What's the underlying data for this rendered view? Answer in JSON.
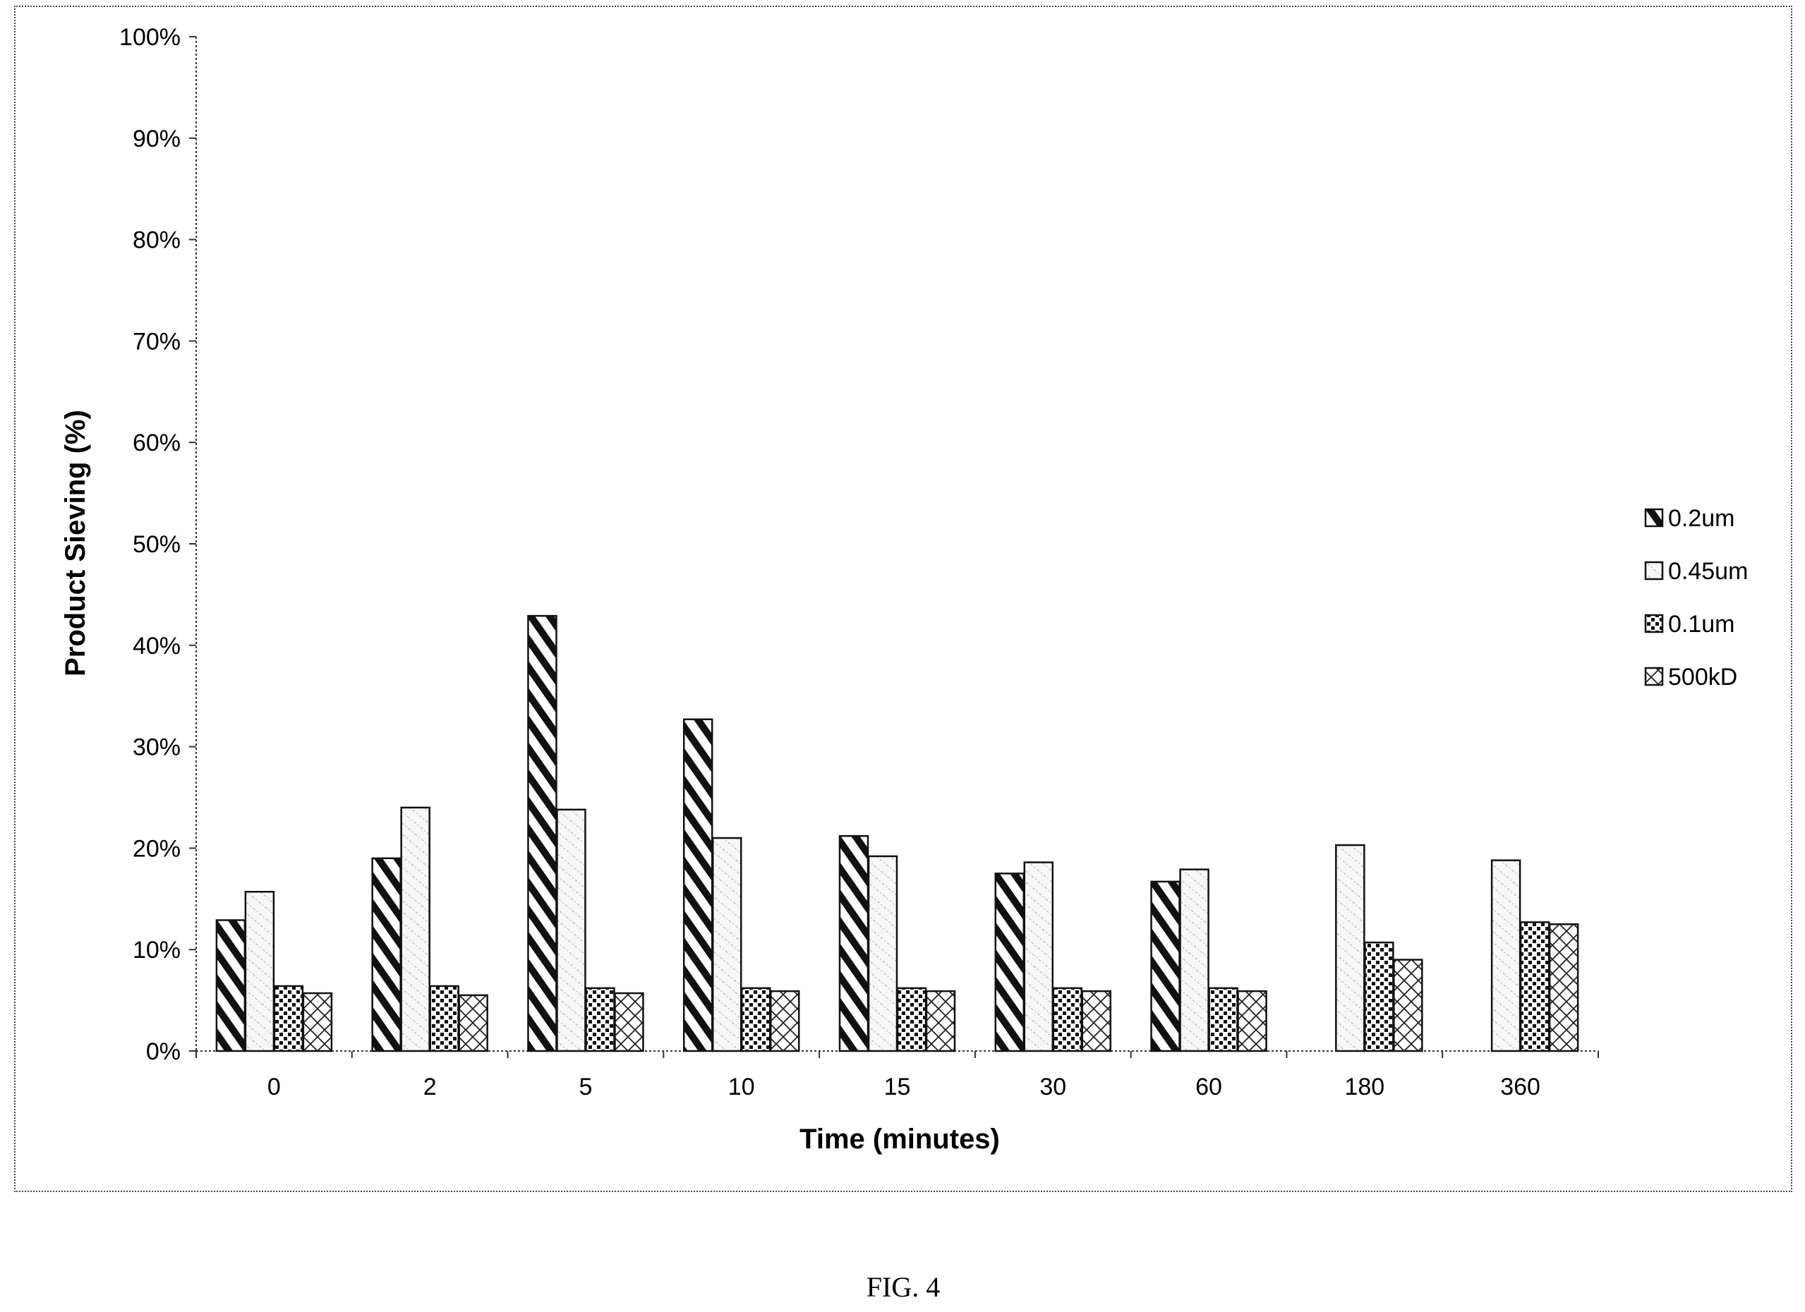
{
  "caption": "FIG. 4",
  "chart_data": {
    "type": "bar",
    "title": "",
    "xlabel": "Time (minutes)",
    "ylabel": "Product Sieving (%)",
    "categories": [
      "0",
      "2",
      "5",
      "10",
      "15",
      "30",
      "60",
      "180",
      "360"
    ],
    "ylim": [
      0,
      100
    ],
    "yticks": [
      0,
      10,
      20,
      30,
      40,
      50,
      60,
      70,
      80,
      90,
      100
    ],
    "ytick_labels": [
      "0%",
      "10%",
      "20%",
      "30%",
      "40%",
      "50%",
      "60%",
      "70%",
      "80%",
      "90%",
      "100%"
    ],
    "grid": false,
    "legend_position": "right",
    "series": [
      {
        "name": "0.2um",
        "pattern": "dense-diagonal-stripes",
        "values": [
          12.9,
          19.0,
          42.9,
          32.7,
          21.2,
          17.5,
          16.7,
          null,
          null
        ]
      },
      {
        "name": "0.45um",
        "pattern": "light-dotted-diagonal",
        "values": [
          15.7,
          24.0,
          23.8,
          21.0,
          19.2,
          18.6,
          17.9,
          20.3,
          18.8
        ]
      },
      {
        "name": "0.1um",
        "pattern": "dense-dots",
        "values": [
          6.4,
          6.4,
          6.2,
          6.2,
          6.2,
          6.2,
          6.2,
          10.7,
          12.7
        ]
      },
      {
        "name": "500kD",
        "pattern": "crosshatch",
        "values": [
          5.7,
          5.5,
          5.7,
          5.9,
          5.9,
          5.9,
          5.9,
          9.0,
          12.5
        ]
      }
    ]
  }
}
